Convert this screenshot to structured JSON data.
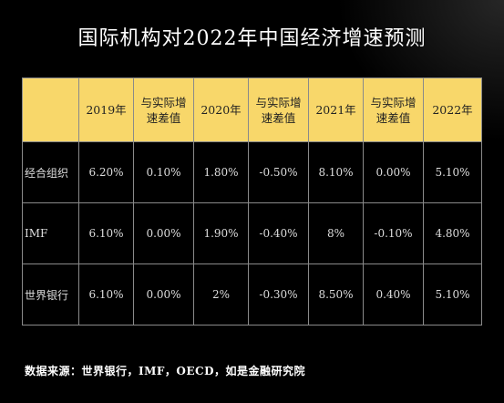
{
  "chart_data": {
    "type": "table",
    "title": "国际机构对2022年中国经济增速预测",
    "columns": [
      "",
      "2019年",
      "与实际增速差值",
      "2020年",
      "与实际增速差值",
      "2021年",
      "与实际增速差值",
      "2022年"
    ],
    "rows": [
      {
        "label": "经合组织",
        "values": [
          "6.20%",
          "0.10%",
          "1.80%",
          "-0.50%",
          "8.10%",
          "0.00%",
          "5.10%"
        ]
      },
      {
        "label": "IMF",
        "values": [
          "6.10%",
          "0.00%",
          "1.90%",
          "-0.40%",
          "8%",
          "-0.10%",
          "4.80%"
        ]
      },
      {
        "label": "世界银行",
        "values": [
          "6.10%",
          "0.00%",
          "2%",
          "-0.30%",
          "8.50%",
          "0.40%",
          "5.10%"
        ]
      }
    ],
    "source": "数据来源：世界银行，IMF，OECD，如是金融研究院"
  },
  "colors": {
    "background": "#000000",
    "header_fill": "#f8d76a",
    "border": "#8a8a8a"
  }
}
